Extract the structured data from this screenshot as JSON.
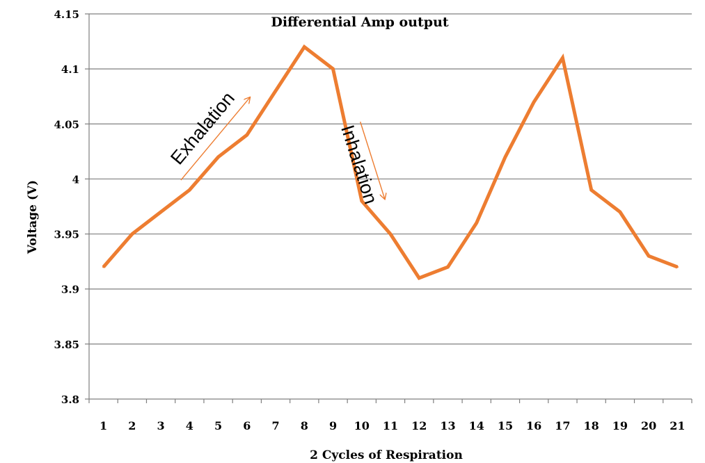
{
  "chart_data": {
    "type": "line",
    "title": "Differential Amp output",
    "xlabel": "2 Cycles of Respiration",
    "ylabel": "Voltage (V)",
    "categories": [
      "1",
      "2",
      "3",
      "4",
      "5",
      "6",
      "7",
      "8",
      "9",
      "10",
      "11",
      "12",
      "13",
      "14",
      "15",
      "16",
      "17",
      "18",
      "19",
      "20",
      "21"
    ],
    "values": [
      3.92,
      3.95,
      3.97,
      3.99,
      4.02,
      4.04,
      4.08,
      4.12,
      4.1,
      3.98,
      3.95,
      3.91,
      3.92,
      3.96,
      4.02,
      4.07,
      4.11,
      3.99,
      3.97,
      3.93,
      3.92
    ],
    "ylim": [
      3.8,
      4.15
    ],
    "yticks": [
      3.8,
      3.85,
      3.9,
      3.95,
      4.0,
      4.05,
      4.1,
      4.15
    ],
    "ytick_labels": [
      "3.8",
      "3.85",
      "3.9",
      "3.95",
      "4",
      "4.05",
      "4.1",
      "4.15"
    ],
    "grid": true,
    "line_color": "#ED7D31",
    "annotations": [
      {
        "text": "Exhalation",
        "from_x": 3.7,
        "from_y": 3.999,
        "to_x": 6.1,
        "to_y": 4.074
      },
      {
        "text": "Inhalation",
        "from_x": 9.95,
        "from_y": 4.052,
        "to_x": 10.8,
        "to_y": 3.982
      }
    ]
  }
}
